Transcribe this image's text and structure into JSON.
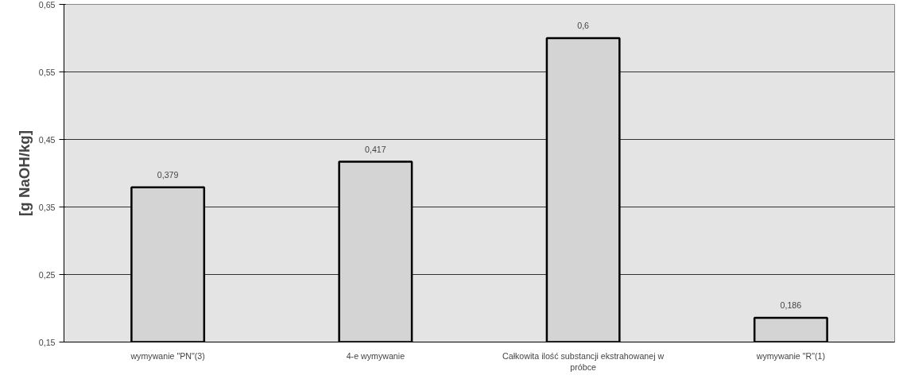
{
  "chart_data": {
    "type": "bar",
    "ylabel": "[g NaOH/kg]",
    "categories": [
      "wymywanie \"PN\"(3)",
      "4-e wymywanie",
      "Całkowita ilość substancji ekstrahowanej w próbce",
      "wymywanie \"R\"(1)"
    ],
    "values": [
      0.379,
      0.417,
      0.6,
      0.186
    ],
    "value_labels": [
      "0,379",
      "0,417",
      "0,6",
      "0,186"
    ],
    "color": "#d4d4d4",
    "ylim": [
      0.15,
      0.65
    ],
    "yticks": [
      {
        "value": 0.15,
        "label": "0,15"
      },
      {
        "value": 0.25,
        "label": "0,25"
      },
      {
        "value": 0.35,
        "label": "0,35"
      },
      {
        "value": 0.45,
        "label": "0,45"
      },
      {
        "value": 0.55,
        "label": "0,55"
      },
      {
        "value": 0.65,
        "label": "0,65"
      }
    ],
    "grid": "y"
  }
}
